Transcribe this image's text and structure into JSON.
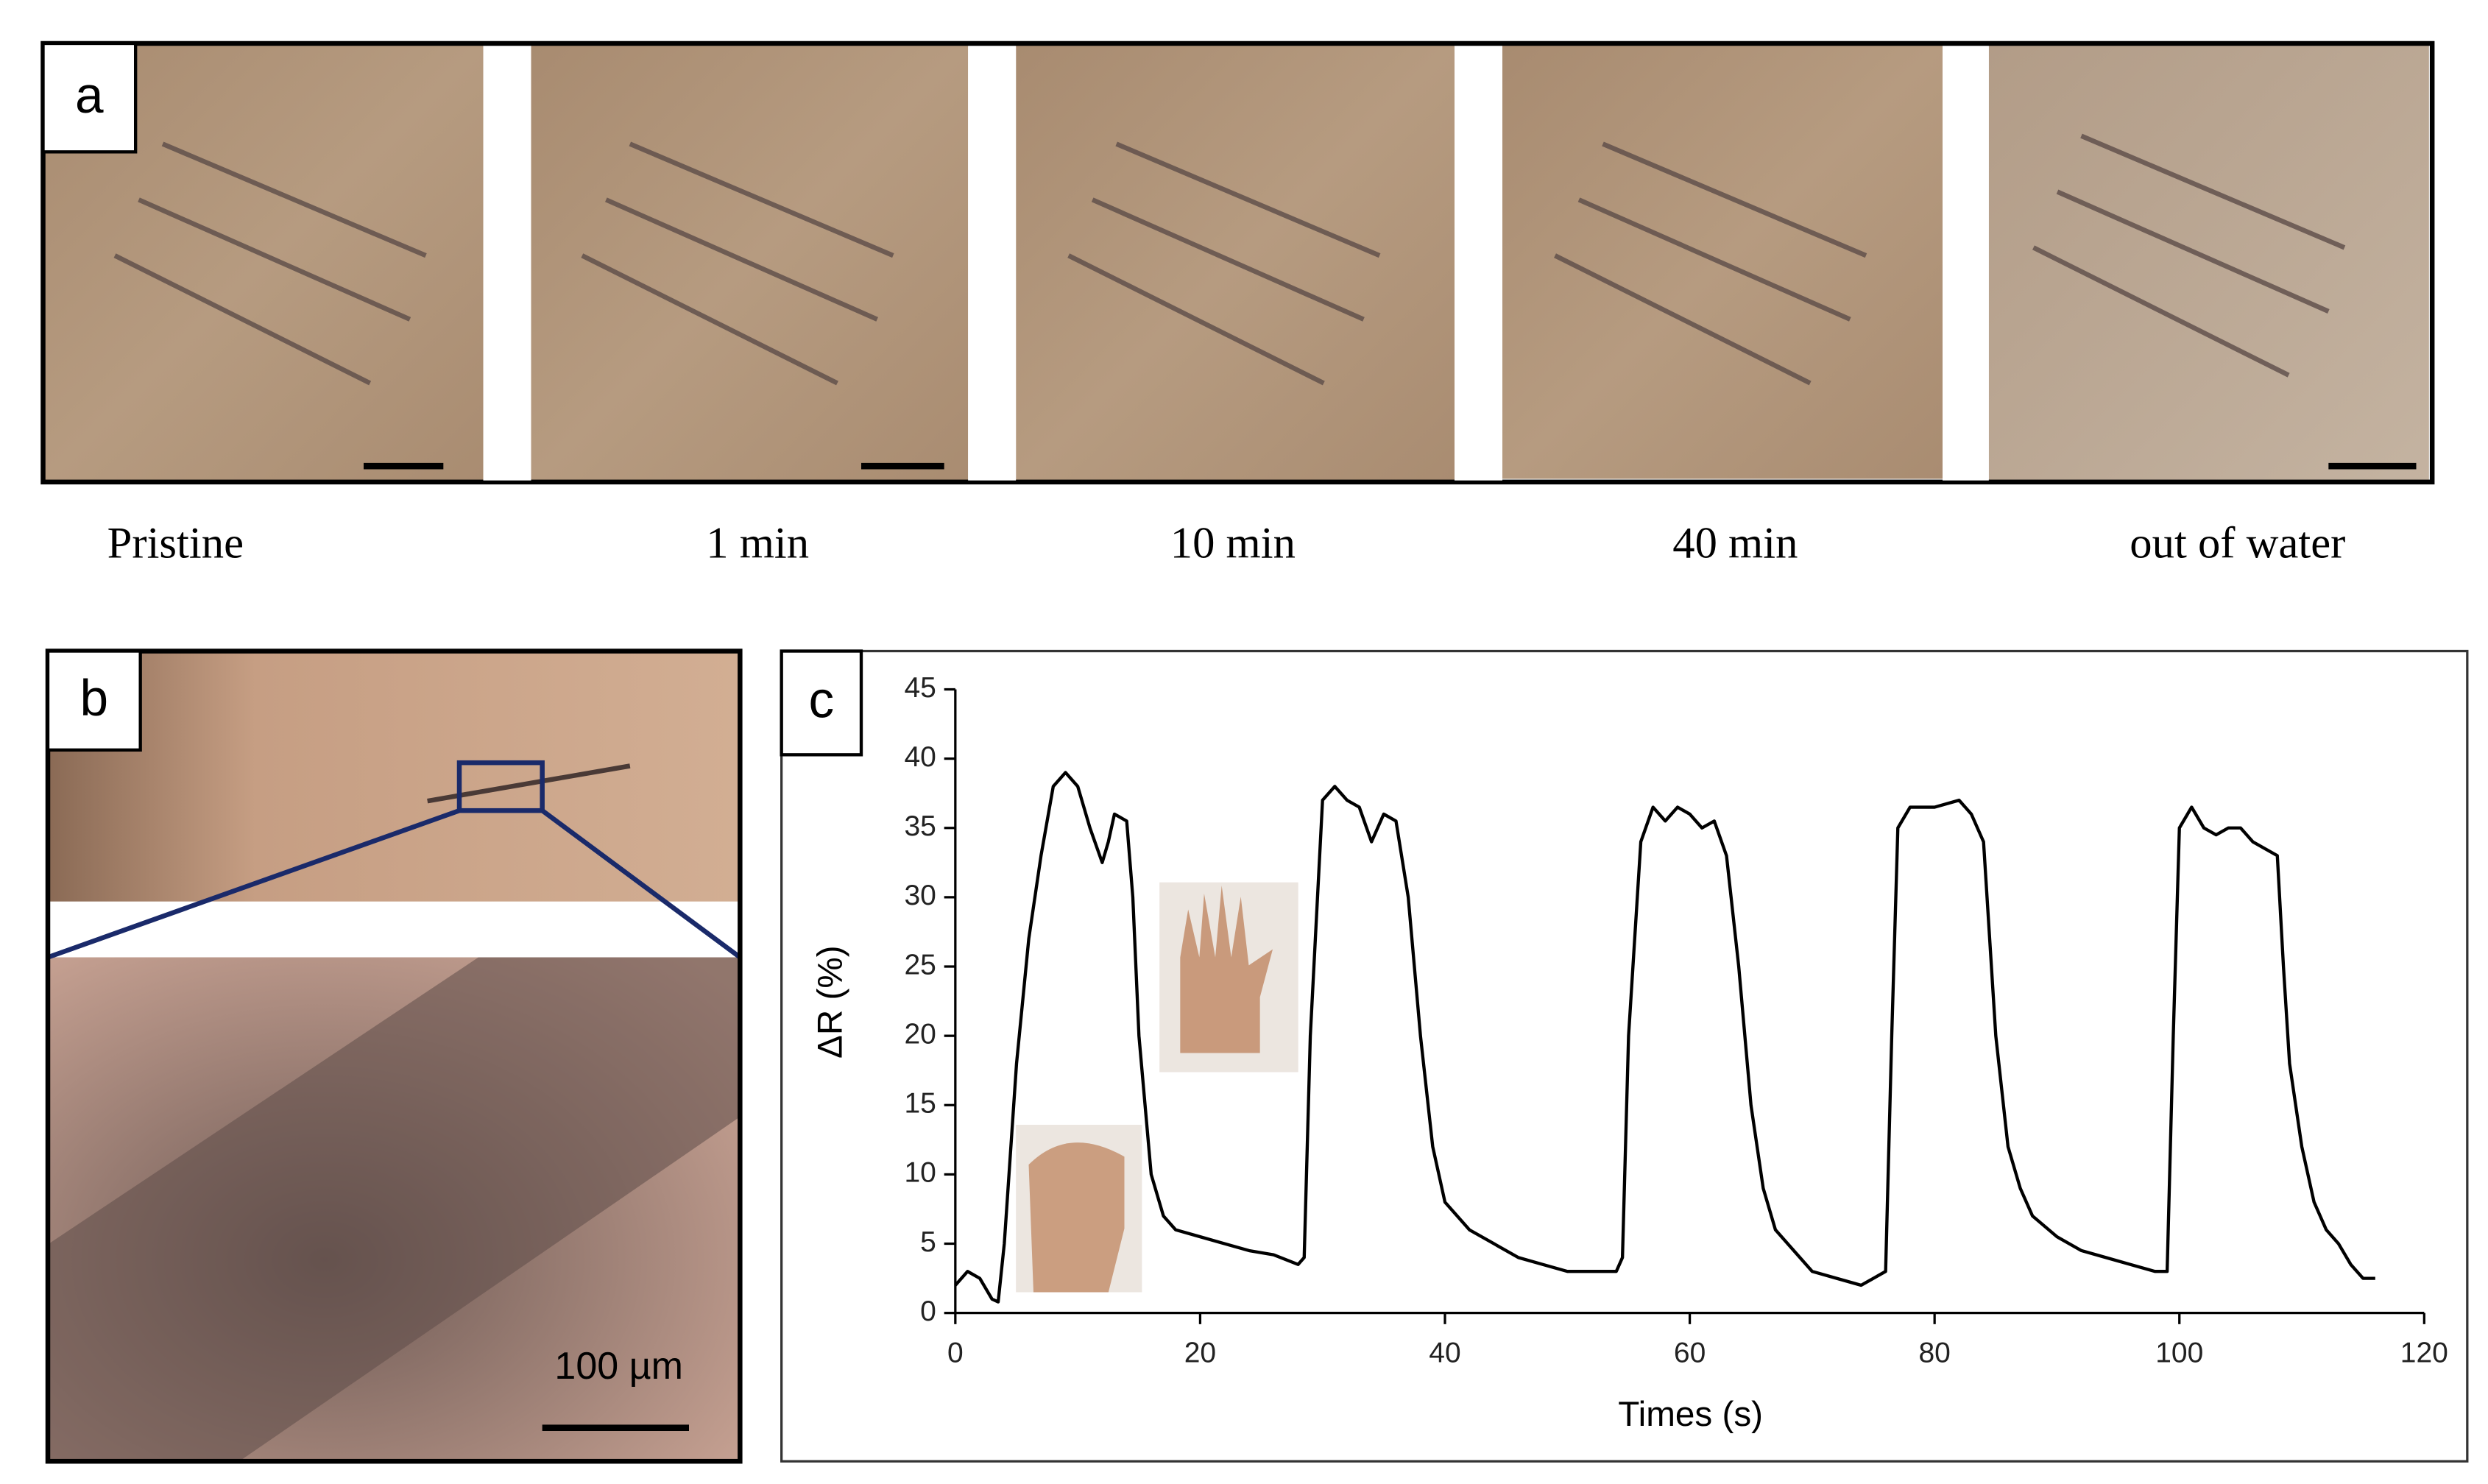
{
  "panel_a": {
    "label": "a",
    "captions": [
      "Pristine",
      "1 min",
      "10 min",
      "40 min",
      "out of water"
    ]
  },
  "panel_b": {
    "label": "b",
    "scale_bar": "100 µm"
  },
  "chart_data": {
    "type": "line",
    "panel_label": "c",
    "x_label": "Times (s)",
    "y_label": "ΔR (%)",
    "color": "#000000",
    "x": [
      0,
      1,
      2,
      3,
      3.5,
      4,
      5,
      6,
      7,
      8,
      9,
      10,
      11,
      12,
      12.5,
      13,
      14,
      14.5,
      15,
      16,
      17,
      18,
      20,
      22,
      24,
      26,
      28,
      28.5,
      29,
      30,
      31,
      32,
      33,
      34,
      35,
      36,
      37,
      38,
      39,
      40,
      42,
      44,
      46,
      48,
      50,
      52,
      54,
      54.5,
      55,
      56,
      57,
      58,
      59,
      60,
      61,
      62,
      63,
      64,
      65,
      66,
      67,
      68,
      70,
      72,
      74,
      75,
      76,
      76.5,
      77,
      78,
      80,
      82,
      83,
      84,
      85,
      86,
      87,
      88,
      90,
      92,
      94,
      96,
      98,
      99,
      99.5,
      100,
      101,
      102,
      103,
      104,
      105,
      106,
      107,
      108,
      108.5,
      109,
      110,
      111,
      112,
      113,
      114,
      115,
      116
    ],
    "values": [
      2,
      3,
      2.5,
      1,
      0.8,
      5,
      18,
      27,
      33,
      38,
      39,
      38,
      35,
      32.5,
      34,
      36,
      35.5,
      30,
      20,
      10,
      7,
      6,
      5.5,
      5,
      4.5,
      4.2,
      3.5,
      4,
      20,
      37,
      38,
      37,
      36.5,
      34,
      36,
      35.5,
      30,
      20,
      12,
      8,
      6,
      5,
      4,
      3.5,
      3,
      3,
      3,
      4,
      20,
      34,
      36.5,
      35.5,
      36.5,
      36,
      35,
      35.5,
      33,
      25,
      15,
      9,
      6,
      5,
      3,
      2.5,
      2,
      2.5,
      3,
      20,
      35,
      36.5,
      36.5,
      37,
      36,
      34,
      20,
      12,
      9,
      7,
      5.5,
      4.5,
      4,
      3.5,
      3,
      3,
      20,
      35,
      36.5,
      35,
      34.5,
      35,
      35,
      34,
      33.5,
      33,
      25,
      18,
      12,
      8,
      6,
      5,
      3.5,
      2.5,
      2.5
    ],
    "xlim": [
      0,
      120
    ],
    "ylim": [
      0,
      45
    ],
    "xticks": [
      0,
      20,
      40,
      60,
      80,
      100,
      120
    ],
    "yticks": [
      0,
      5,
      10,
      15,
      20,
      25,
      30,
      35,
      40,
      45
    ]
  }
}
